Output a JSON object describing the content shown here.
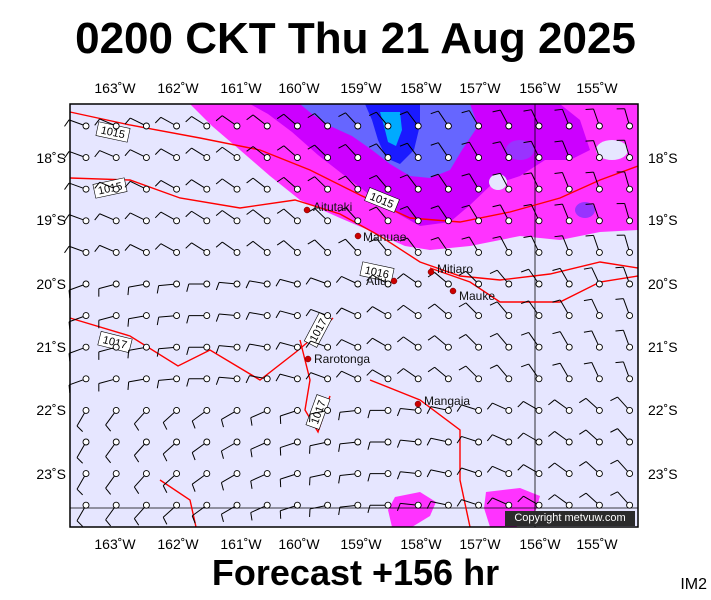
{
  "title": "0200 CKT Thu 21 Aug 2025",
  "footer": "Forecast +156 hr",
  "image_code": "IM2",
  "copyright": "Copyright metvuw.com",
  "axes": {
    "lon_labels": [
      "163˚W",
      "162˚W",
      "161˚W",
      "160˚W",
      "159˚W",
      "158˚W",
      "157˚W",
      "156˚W",
      "155˚W"
    ],
    "lat_labels": [
      "18˚S",
      "19˚S",
      "20˚S",
      "21˚S",
      "22˚S",
      "23˚S"
    ]
  },
  "places": [
    {
      "name": "Aitutaki"
    },
    {
      "name": "Manuae"
    },
    {
      "name": "Mitiaro"
    },
    {
      "name": "Atiu"
    },
    {
      "name": "Mauke"
    },
    {
      "name": "Rarotonga"
    },
    {
      "name": "Mangaia"
    }
  ],
  "isobar_labels": [
    "1015",
    "1015",
    "1015",
    "1016",
    "1017",
    "1017",
    "1017"
  ],
  "colors": {
    "ocean": "#e6e6ff",
    "rain_light": "#ff33ff",
    "rain_med": "#cc00ff",
    "rain_heavy": "#6666ff",
    "rain_intense": "#0033ff",
    "isobar": "#ff0000",
    "coast_dot": "#cc0000"
  }
}
